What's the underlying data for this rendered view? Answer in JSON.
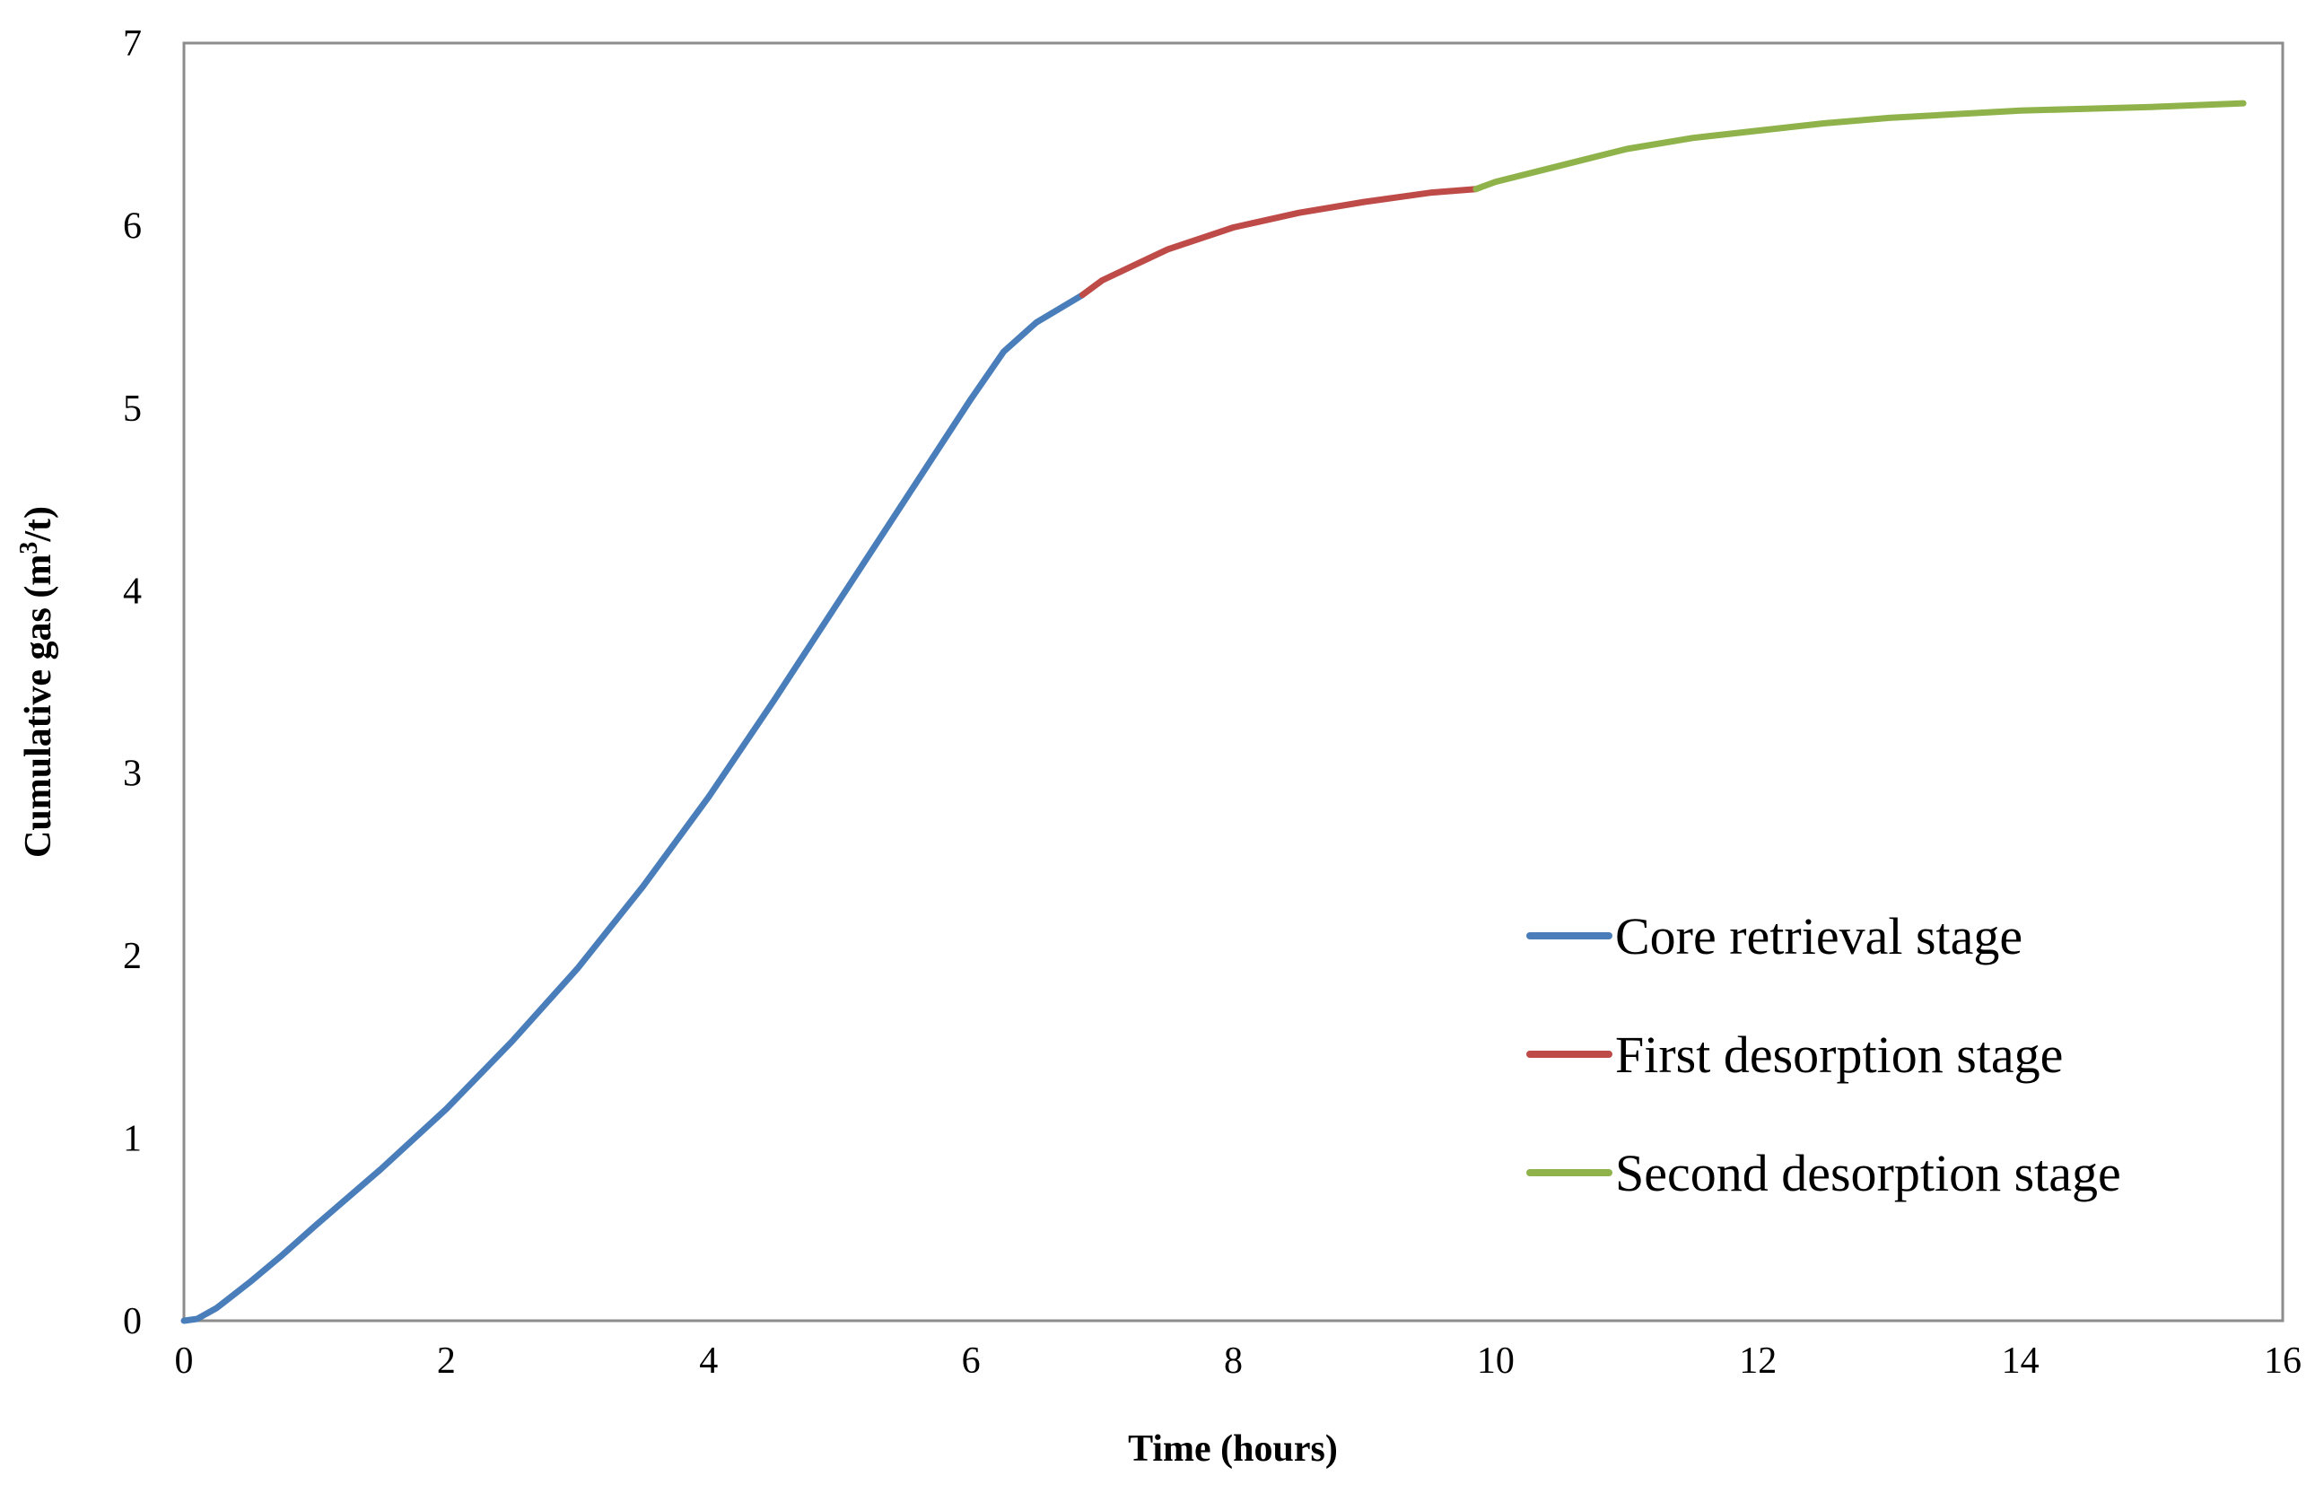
{
  "chart_data": {
    "type": "line",
    "title": "",
    "xlabel": "Time  (hours)",
    "ylabel": {
      "prefix": "Cumulative  gas (m",
      "sup": "3",
      "suffix": "/t)"
    },
    "xlim": [
      0,
      16
    ],
    "ylim": [
      0,
      7
    ],
    "xticks": [
      0,
      2,
      4,
      6,
      8,
      10,
      12,
      14,
      16
    ],
    "yticks": [
      0,
      1,
      2,
      3,
      4,
      5,
      6,
      7
    ],
    "grid": false,
    "legend_position": "center-right",
    "series": [
      {
        "name": "Core retrieval stage",
        "color": "#4a7ebb",
        "x": [
          0,
          0.1,
          0.25,
          0.5,
          0.75,
          1,
          1.5,
          2,
          2.5,
          3,
          3.5,
          4,
          4.5,
          5,
          5.5,
          6,
          6.25,
          6.5,
          6.85
        ],
        "y": [
          0,
          0.01,
          0.07,
          0.21,
          0.36,
          0.52,
          0.83,
          1.16,
          1.53,
          1.93,
          2.38,
          2.87,
          3.4,
          3.95,
          4.5,
          5.05,
          5.31,
          5.47,
          5.62
        ]
      },
      {
        "name": "First desorption stage",
        "color": "#be4b48",
        "x": [
          6.85,
          7,
          7.5,
          8,
          8.5,
          9,
          9.5,
          9.85
        ],
        "y": [
          5.62,
          5.7,
          5.87,
          5.99,
          6.07,
          6.13,
          6.18,
          6.2
        ]
      },
      {
        "name": "Second desorption stage",
        "color": "#8fb34a",
        "x": [
          9.85,
          10,
          10.5,
          11,
          11.5,
          12,
          12.5,
          13,
          13.5,
          14,
          14.5,
          15,
          15.7
        ],
        "y": [
          6.2,
          6.24,
          6.33,
          6.42,
          6.48,
          6.52,
          6.56,
          6.59,
          6.61,
          6.63,
          6.64,
          6.65,
          6.67
        ]
      }
    ]
  }
}
